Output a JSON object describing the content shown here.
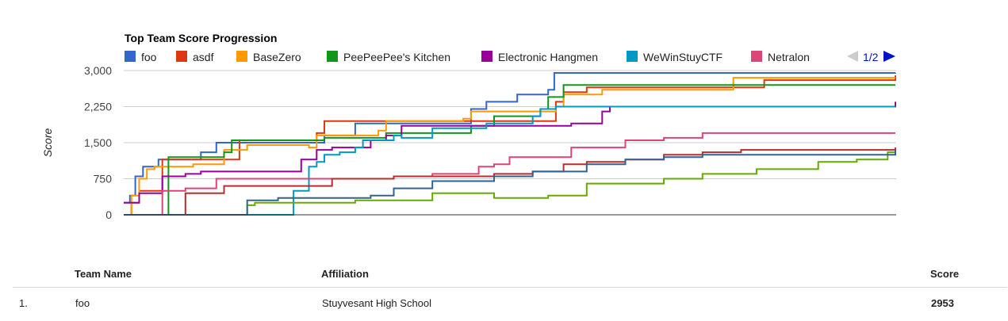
{
  "chart_data": {
    "type": "line",
    "title": "Top Team Score Progression",
    "ylabel": "Score",
    "xlabel": "",
    "ylim": [
      0,
      3000
    ],
    "yticks": [
      "0",
      "750",
      "1,500",
      "2,250",
      "3,000"
    ],
    "legend_page": "1/2",
    "grid": true,
    "legend_position": "top",
    "series": [
      {
        "name": "foo",
        "color": "#3366cc",
        "points": [
          [
            0,
            250
          ],
          [
            0.8,
            400
          ],
          [
            1.5,
            800
          ],
          [
            2.5,
            1000
          ],
          [
            4.5,
            1150
          ],
          [
            10,
            1300
          ],
          [
            12,
            1500
          ],
          [
            24,
            1500
          ],
          [
            26,
            1650
          ],
          [
            30,
            1900
          ],
          [
            45,
            2200
          ],
          [
            47,
            2350
          ],
          [
            51,
            2500
          ],
          [
            55,
            2600
          ],
          [
            55.8,
            2950
          ],
          [
            100,
            2953
          ]
        ]
      },
      {
        "name": "asdf",
        "color": "#dc3912",
        "points": [
          [
            0,
            0
          ],
          [
            1,
            250
          ],
          [
            2,
            500
          ],
          [
            5,
            1150
          ],
          [
            15,
            1550
          ],
          [
            25,
            1700
          ],
          [
            26,
            1950
          ],
          [
            50,
            1950
          ],
          [
            56,
            2350
          ],
          [
            57,
            2550
          ],
          [
            60,
            2650
          ],
          [
            80,
            2650
          ],
          [
            83,
            2800
          ],
          [
            99.5,
            2800
          ],
          [
            100,
            2900
          ]
        ]
      },
      {
        "name": "BaseZero",
        "color": "#ff9900",
        "points": [
          [
            0,
            0
          ],
          [
            1,
            400
          ],
          [
            2,
            750
          ],
          [
            3,
            950
          ],
          [
            4,
            1000
          ],
          [
            9,
            1050
          ],
          [
            13,
            1350
          ],
          [
            16,
            1450
          ],
          [
            24,
            1400
          ],
          [
            25,
            1650
          ],
          [
            33,
            1750
          ],
          [
            34,
            1950
          ],
          [
            44,
            2000
          ],
          [
            45,
            2150
          ],
          [
            56,
            2250
          ],
          [
            57,
            2500
          ],
          [
            62,
            2600
          ],
          [
            76,
            2600
          ],
          [
            79,
            2850
          ],
          [
            100,
            2850
          ]
        ]
      },
      {
        "name": "PeePeePee's Kitchen",
        "color": "#109618",
        "points": [
          [
            0,
            0
          ],
          [
            5,
            0
          ],
          [
            5.8,
            1200
          ],
          [
            13,
            1300
          ],
          [
            14,
            1550
          ],
          [
            26,
            1600
          ],
          [
            34,
            1700
          ],
          [
            45,
            1850
          ],
          [
            48,
            2050
          ],
          [
            54,
            2200
          ],
          [
            55,
            2450
          ],
          [
            57,
            2700
          ],
          [
            100,
            2700
          ]
        ]
      },
      {
        "name": "Electronic Hangmen",
        "color": "#990099",
        "points": [
          [
            0,
            250
          ],
          [
            2,
            450
          ],
          [
            5,
            800
          ],
          [
            8,
            850
          ],
          [
            10,
            900
          ],
          [
            22,
            900
          ],
          [
            23,
            1150
          ],
          [
            25,
            1350
          ],
          [
            27,
            1400
          ],
          [
            32,
            1550
          ],
          [
            34,
            1650
          ],
          [
            36,
            1850
          ],
          [
            58,
            1900
          ],
          [
            62,
            2150
          ],
          [
            63,
            2250
          ],
          [
            100,
            2250
          ],
          [
            100,
            2350
          ]
        ]
      },
      {
        "name": "WeWinStuyCTF",
        "color": "#0099c6",
        "points": [
          [
            0,
            0
          ],
          [
            21,
            0
          ],
          [
            22,
            500
          ],
          [
            24,
            1000
          ],
          [
            25,
            1100
          ],
          [
            26,
            1250
          ],
          [
            28,
            1300
          ],
          [
            30,
            1400
          ],
          [
            31,
            1550
          ],
          [
            35,
            1650
          ],
          [
            36,
            1600
          ],
          [
            40,
            1800
          ],
          [
            47,
            1900
          ],
          [
            53,
            2050
          ],
          [
            54,
            2200
          ],
          [
            56,
            2250
          ],
          [
            100,
            2250
          ]
        ]
      },
      {
        "name": "Netralon",
        "color": "#dd4477",
        "points": [
          [
            0,
            0
          ],
          [
            5,
            500
          ],
          [
            8,
            550
          ],
          [
            12,
            750
          ],
          [
            30,
            750
          ],
          [
            35,
            800
          ],
          [
            40,
            850
          ],
          [
            44,
            850
          ],
          [
            46,
            1000
          ],
          [
            48,
            1050
          ],
          [
            50,
            1200
          ],
          [
            58,
            1400
          ],
          [
            65,
            1550
          ],
          [
            70,
            1600
          ],
          [
            75,
            1700
          ],
          [
            100,
            1700
          ]
        ]
      },
      {
        "name": "",
        "color": "#66aa00",
        "points": [
          [
            0,
            0
          ],
          [
            15,
            0
          ],
          [
            16,
            200
          ],
          [
            17,
            250
          ],
          [
            26,
            250
          ],
          [
            30,
            300
          ],
          [
            40,
            450
          ],
          [
            48,
            350
          ],
          [
            55,
            400
          ],
          [
            60,
            650
          ],
          [
            70,
            750
          ],
          [
            75,
            850
          ],
          [
            82,
            950
          ],
          [
            90,
            1100
          ],
          [
            95,
            1150
          ],
          [
            99,
            1300
          ],
          [
            100,
            1400
          ]
        ]
      },
      {
        "name": "",
        "color": "#b82e2e",
        "points": [
          [
            0,
            0
          ],
          [
            8,
            450
          ],
          [
            13,
            600
          ],
          [
            27,
            750
          ],
          [
            35,
            800
          ],
          [
            45,
            800
          ],
          [
            48,
            850
          ],
          [
            53,
            900
          ],
          [
            57,
            1050
          ],
          [
            60,
            1100
          ],
          [
            65,
            1150
          ],
          [
            70,
            1250
          ],
          [
            75,
            1300
          ],
          [
            80,
            1350
          ],
          [
            99,
            1350
          ],
          [
            100,
            1400
          ]
        ]
      },
      {
        "name": "",
        "color": "#316395",
        "points": [
          [
            0,
            0
          ],
          [
            15,
            0
          ],
          [
            16,
            300
          ],
          [
            20,
            350
          ],
          [
            32,
            400
          ],
          [
            35,
            550
          ],
          [
            40,
            700
          ],
          [
            48,
            800
          ],
          [
            53,
            900
          ],
          [
            60,
            1050
          ],
          [
            65,
            1150
          ],
          [
            70,
            1200
          ],
          [
            75,
            1250
          ],
          [
            99,
            1250
          ],
          [
            100,
            1350
          ]
        ]
      }
    ]
  },
  "table": {
    "headers": {
      "team": "Team Name",
      "affiliation": "Affiliation",
      "score": "Score"
    },
    "rows": [
      {
        "rank": "1.",
        "team": "foo",
        "affiliation": "Stuyvesant High School",
        "score": "2953"
      }
    ]
  }
}
